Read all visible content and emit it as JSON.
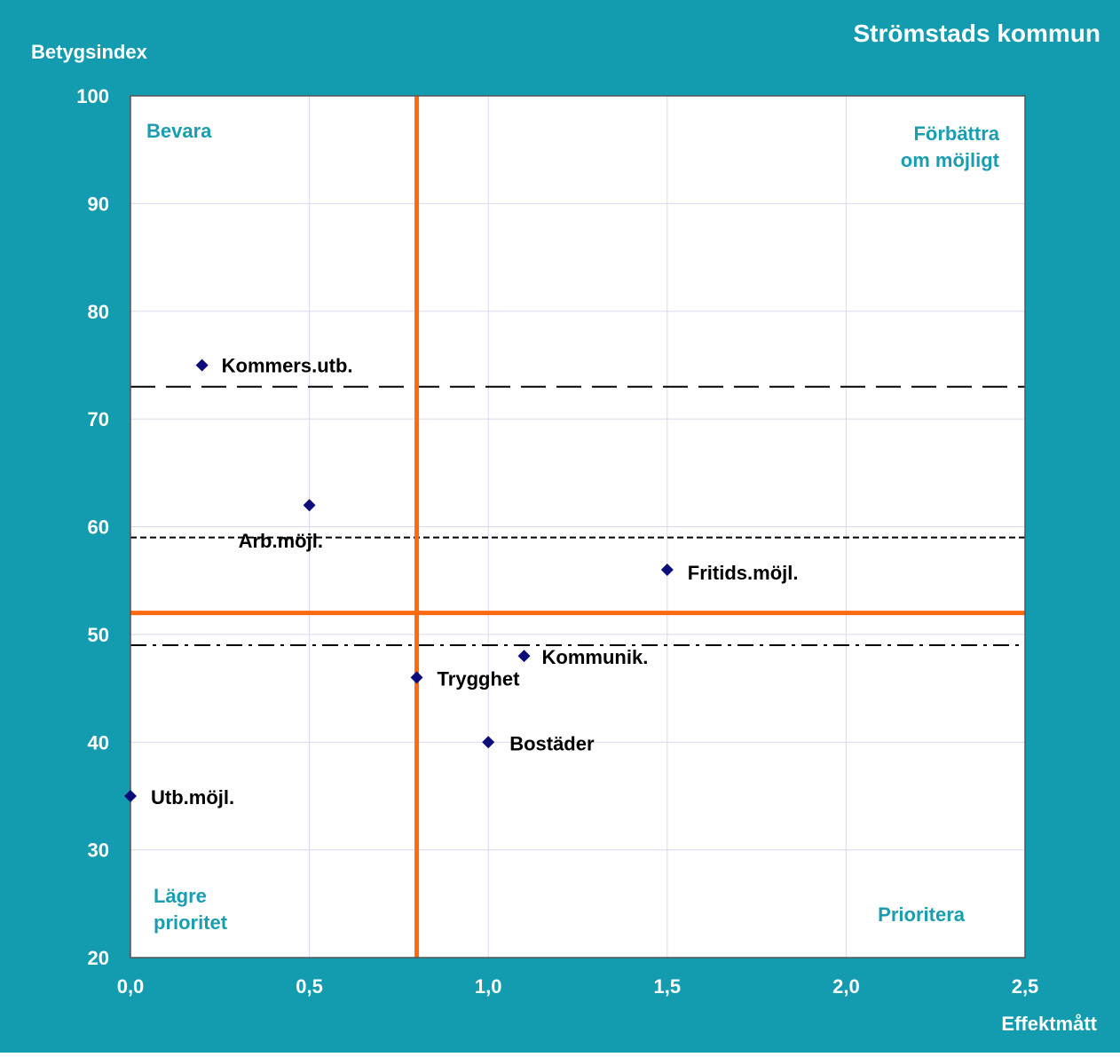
{
  "chart_data": {
    "type": "scatter",
    "title": "Strömstads kommun",
    "ylabel": "Betygsindex",
    "xlabel": "Effektmått",
    "xlim": [
      0,
      2.5
    ],
    "ylim": [
      20,
      100
    ],
    "x_ticks": [
      "0,0",
      "0,5",
      "1,0",
      "1,5",
      "2,0",
      "2,5"
    ],
    "y_ticks": [
      "20",
      "30",
      "40",
      "50",
      "60",
      "70",
      "80",
      "90",
      "100"
    ],
    "grid": true,
    "quadrant_labels": {
      "top_left": "Bevara",
      "top_right": [
        "Förbättra",
        "om möjligt"
      ],
      "bottom_left": [
        "Lägre",
        "prioritet"
      ],
      "bottom_right": "Prioritera"
    },
    "divider_lines": {
      "x": 0.8,
      "y": 52
    },
    "reference_lines": [
      {
        "y": 73,
        "style": "long-dash"
      },
      {
        "y": 59,
        "style": "short-dash"
      },
      {
        "y": 49,
        "style": "dash-dot"
      }
    ],
    "points": [
      {
        "label": "Kommers.utb.",
        "x": 0.2,
        "y": 75
      },
      {
        "label": "Arb.möjl.",
        "x": 0.5,
        "y": 62
      },
      {
        "label": "Fritids.möjl.",
        "x": 1.5,
        "y": 56
      },
      {
        "label": "Kommunik.",
        "x": 1.1,
        "y": 48
      },
      {
        "label": "Trygghet",
        "x": 0.8,
        "y": 46
      },
      {
        "label": "Bostäder",
        "x": 1.0,
        "y": 40
      },
      {
        "label": "Utb.möjl.",
        "x": 0.0,
        "y": 35
      }
    ],
    "colors": {
      "frame": "#139baf",
      "plot_bg": "#ffffff",
      "grid": "#d8d8ee",
      "divider": "#ff6a10",
      "marker": "#0c0c7a",
      "quadrant_text": "#1a9db0",
      "axis_text": "#ffffff",
      "point_label": "#000000"
    }
  }
}
